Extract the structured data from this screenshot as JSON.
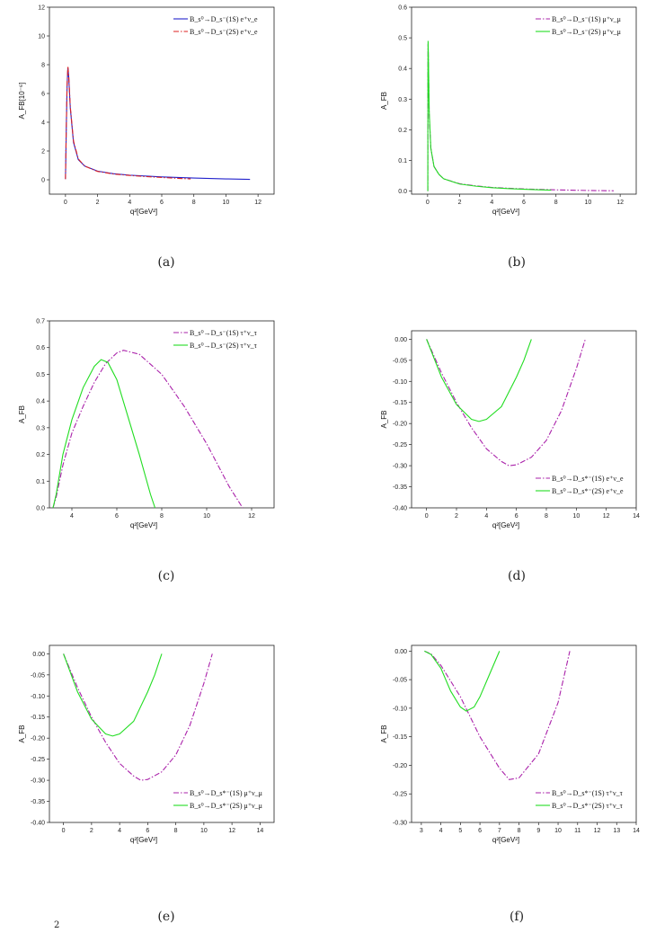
{
  "footnote": "2",
  "chart_data": [
    {
      "id": "a",
      "caption": "(a)",
      "type": "line",
      "xlabel": "q²[GeV²]",
      "ylabel": "A_FB[10⁻⁶]",
      "xlim": [
        -1,
        13
      ],
      "ylim": [
        -1,
        12
      ],
      "xticks": [
        0,
        2,
        4,
        6,
        8,
        10,
        12
      ],
      "xtick_labels": [
        "0",
        "2",
        "4",
        "6",
        "8",
        "10",
        "12"
      ],
      "yticks": [
        0,
        2,
        4,
        6,
        8,
        10,
        12
      ],
      "ytick_labels": [
        "0",
        "2",
        "4",
        "6",
        "8",
        "10",
        "12"
      ],
      "legend_position": "top-right",
      "series": [
        {
          "name": "B_s⁰→D_s⁻(1S) e⁺ν_e",
          "color": "#2222cc",
          "dash": "solid",
          "points": [
            [
              0.0,
              0.05
            ],
            [
              0.05,
              3.5
            ],
            [
              0.1,
              6.5
            ],
            [
              0.15,
              7.8
            ],
            [
              0.2,
              7.2
            ],
            [
              0.3,
              5.0
            ],
            [
              0.5,
              2.6
            ],
            [
              0.8,
              1.4
            ],
            [
              1.2,
              0.95
            ],
            [
              2,
              0.6
            ],
            [
              3,
              0.42
            ],
            [
              4,
              0.32
            ],
            [
              6,
              0.2
            ],
            [
              8,
              0.12
            ],
            [
              10,
              0.06
            ],
            [
              11.5,
              0.03
            ]
          ]
        },
        {
          "name": "B_s⁰→D_s⁻(2S) e⁺ν_e",
          "color": "#dd2222",
          "dash": "dashdot",
          "points": [
            [
              0.0,
              0.05
            ],
            [
              0.05,
              3.6
            ],
            [
              0.1,
              6.6
            ],
            [
              0.15,
              7.9
            ],
            [
              0.2,
              7.3
            ],
            [
              0.3,
              5.1
            ],
            [
              0.5,
              2.7
            ],
            [
              0.8,
              1.45
            ],
            [
              1.2,
              0.95
            ],
            [
              2,
              0.58
            ],
            [
              3,
              0.4
            ],
            [
              4,
              0.3
            ],
            [
              5,
              0.22
            ],
            [
              6,
              0.16
            ],
            [
              7,
              0.1
            ],
            [
              7.8,
              0.06
            ]
          ]
        }
      ]
    },
    {
      "id": "b",
      "caption": "(b)",
      "type": "line",
      "xlabel": "q²[GeV²]",
      "ylabel": "A_FB",
      "xlim": [
        -1,
        13
      ],
      "ylim": [
        -0.01,
        0.6
      ],
      "xticks": [
        0,
        2,
        4,
        6,
        8,
        10,
        12
      ],
      "xtick_labels": [
        "0",
        "2",
        "4",
        "6",
        "8",
        "10",
        "12"
      ],
      "yticks": [
        0.0,
        0.1,
        0.2,
        0.3,
        0.4,
        0.5,
        0.6
      ],
      "ytick_labels": [
        "0.0",
        "0.1",
        "0.2",
        "0.3",
        "0.4",
        "0.5",
        "0.6"
      ],
      "legend_position": "top-right",
      "series": [
        {
          "name": "B_s⁰→D_s⁻(1S) μ⁺ν_μ",
          "color": "#aa22aa",
          "dash": "dashdot",
          "points": [
            [
              0.0112,
              0.0
            ],
            [
              0.015,
              0.15
            ],
            [
              0.02,
              0.35
            ],
            [
              0.03,
              0.48
            ],
            [
              0.05,
              0.42
            ],
            [
              0.1,
              0.25
            ],
            [
              0.2,
              0.14
            ],
            [
              0.4,
              0.08
            ],
            [
              0.7,
              0.055
            ],
            [
              1,
              0.04
            ],
            [
              2,
              0.024
            ],
            [
              3,
              0.017
            ],
            [
              4,
              0.012
            ],
            [
              6,
              0.007
            ],
            [
              8,
              0.004
            ],
            [
              10,
              0.002
            ],
            [
              11.6,
              0.001
            ]
          ]
        },
        {
          "name": "B_s⁰→D_s⁻(2S) μ⁺ν_μ",
          "color": "#22dd22",
          "dash": "solid",
          "points": [
            [
              0.0112,
              0.0
            ],
            [
              0.015,
              0.16
            ],
            [
              0.02,
              0.36
            ],
            [
              0.03,
              0.49
            ],
            [
              0.05,
              0.43
            ],
            [
              0.1,
              0.26
            ],
            [
              0.2,
              0.14
            ],
            [
              0.4,
              0.08
            ],
            [
              0.7,
              0.055
            ],
            [
              1,
              0.04
            ],
            [
              2,
              0.023
            ],
            [
              3,
              0.016
            ],
            [
              4,
              0.011
            ],
            [
              5,
              0.008
            ],
            [
              6,
              0.006
            ],
            [
              7,
              0.004
            ],
            [
              7.7,
              0.003
            ]
          ]
        }
      ]
    },
    {
      "id": "c",
      "caption": "(c)",
      "type": "line",
      "xlabel": "q²[GeV²]",
      "ylabel": "A_FB",
      "xlim": [
        3,
        13
      ],
      "ylim": [
        0,
        0.7
      ],
      "xticks": [
        4,
        6,
        8,
        10,
        12
      ],
      "xtick_labels": [
        "4",
        "6",
        "8",
        "10",
        "12"
      ],
      "yticks": [
        0.0,
        0.1,
        0.2,
        0.3,
        0.4,
        0.5,
        0.6,
        0.7
      ],
      "ytick_labels": [
        "0.0",
        "0.1",
        "0.2",
        "0.3",
        "0.4",
        "0.5",
        "0.6",
        "0.7"
      ],
      "legend_position": "top-right",
      "series": [
        {
          "name": "B_s⁰→D_s⁻(1S) τ⁺ν_τ",
          "color": "#aa22aa",
          "dash": "dashdot",
          "points": [
            [
              3.16,
              0.0
            ],
            [
              3.3,
              0.04
            ],
            [
              3.6,
              0.16
            ],
            [
              4,
              0.28
            ],
            [
              4.5,
              0.38
            ],
            [
              5,
              0.47
            ],
            [
              5.5,
              0.54
            ],
            [
              6,
              0.58
            ],
            [
              6.3,
              0.59
            ],
            [
              7,
              0.575
            ],
            [
              8,
              0.5
            ],
            [
              9,
              0.38
            ],
            [
              10,
              0.24
            ],
            [
              11,
              0.08
            ],
            [
              11.6,
              0.0
            ]
          ]
        },
        {
          "name": "B_s⁰→D_s⁻(2S) τ⁺ν_τ",
          "color": "#22dd22",
          "dash": "solid",
          "points": [
            [
              3.16,
              0.0
            ],
            [
              3.3,
              0.05
            ],
            [
              3.6,
              0.2
            ],
            [
              4,
              0.33
            ],
            [
              4.5,
              0.45
            ],
            [
              5,
              0.53
            ],
            [
              5.3,
              0.555
            ],
            [
              5.6,
              0.545
            ],
            [
              6,
              0.48
            ],
            [
              6.5,
              0.34
            ],
            [
              7,
              0.2
            ],
            [
              7.5,
              0.05
            ],
            [
              7.7,
              0.0
            ]
          ]
        }
      ]
    },
    {
      "id": "d",
      "caption": "(d)",
      "type": "line",
      "xlabel": "q²[GeV²]",
      "ylabel": "A_FB",
      "xlim": [
        -1,
        14
      ],
      "ylim": [
        -0.4,
        0.02
      ],
      "xticks": [
        0,
        2,
        4,
        6,
        8,
        10,
        12,
        14
      ],
      "xtick_labels": [
        "0",
        "2",
        "4",
        "6",
        "8",
        "10",
        "12",
        "14"
      ],
      "yticks": [
        0.0,
        -0.05,
        -0.1,
        -0.15,
        -0.2,
        -0.25,
        -0.3,
        -0.35,
        -0.4
      ],
      "ytick_labels": [
        "0.00",
        "-0.05",
        "-0.10",
        "-0.15",
        "-0.20",
        "-0.25",
        "-0.30",
        "-0.35",
        "-0.40"
      ],
      "legend_position": "bottom-right",
      "series": [
        {
          "name": "B_s⁰→D_s*⁻(1S) e⁺ν_e",
          "color": "#aa22aa",
          "dash": "dashdot",
          "points": [
            [
              0,
              0.0
            ],
            [
              1,
              -0.08
            ],
            [
              2,
              -0.15
            ],
            [
              3,
              -0.21
            ],
            [
              4,
              -0.26
            ],
            [
              5,
              -0.29
            ],
            [
              5.5,
              -0.3
            ],
            [
              6,
              -0.298
            ],
            [
              7,
              -0.28
            ],
            [
              8,
              -0.24
            ],
            [
              9,
              -0.17
            ],
            [
              10,
              -0.07
            ],
            [
              10.6,
              0.0
            ]
          ]
        },
        {
          "name": "B_s⁰→D_s*⁻(2S) e⁺ν_e",
          "color": "#22dd22",
          "dash": "solid",
          "points": [
            [
              0,
              0.0
            ],
            [
              1,
              -0.09
            ],
            [
              2,
              -0.155
            ],
            [
              3,
              -0.19
            ],
            [
              3.5,
              -0.195
            ],
            [
              4,
              -0.19
            ],
            [
              5,
              -0.16
            ],
            [
              6,
              -0.09
            ],
            [
              6.5,
              -0.05
            ],
            [
              7,
              0.0
            ]
          ]
        }
      ]
    },
    {
      "id": "e",
      "caption": "(e)",
      "type": "line",
      "xlabel": "q²[GeV²]",
      "ylabel": "A_FB",
      "xlim": [
        -1,
        15
      ],
      "ylim": [
        -0.4,
        0.02
      ],
      "xticks": [
        0,
        2,
        4,
        6,
        8,
        10,
        12,
        14
      ],
      "xtick_labels": [
        "0",
        "2",
        "4",
        "6",
        "8",
        "10",
        "12",
        "14"
      ],
      "yticks": [
        0.0,
        -0.05,
        -0.1,
        -0.15,
        -0.2,
        -0.25,
        -0.3,
        -0.35,
        -0.4
      ],
      "ytick_labels": [
        "0.00",
        "-0.05",
        "-0.10",
        "-0.15",
        "-0.20",
        "-0.25",
        "-0.30",
        "-0.35",
        "-0.40"
      ],
      "legend_position": "bottom-right",
      "series": [
        {
          "name": "B_s⁰→D_s*⁻(1S) μ⁺ν_μ",
          "color": "#aa22aa",
          "dash": "dashdot",
          "points": [
            [
              0,
              0.0
            ],
            [
              1,
              -0.08
            ],
            [
              2,
              -0.15
            ],
            [
              3,
              -0.21
            ],
            [
              4,
              -0.26
            ],
            [
              5,
              -0.29
            ],
            [
              5.5,
              -0.3
            ],
            [
              6,
              -0.298
            ],
            [
              7,
              -0.28
            ],
            [
              8,
              -0.24
            ],
            [
              9,
              -0.17
            ],
            [
              10,
              -0.07
            ],
            [
              10.6,
              0.0
            ]
          ]
        },
        {
          "name": "B_s⁰→D_s*⁻(2S) μ⁺ν_μ",
          "color": "#22dd22",
          "dash": "solid",
          "points": [
            [
              0,
              0.0
            ],
            [
              1,
              -0.09
            ],
            [
              2,
              -0.155
            ],
            [
              3,
              -0.19
            ],
            [
              3.5,
              -0.195
            ],
            [
              4,
              -0.19
            ],
            [
              5,
              -0.16
            ],
            [
              6,
              -0.09
            ],
            [
              6.5,
              -0.05
            ],
            [
              7,
              0.0
            ]
          ]
        }
      ]
    },
    {
      "id": "f",
      "caption": "(f)",
      "type": "line",
      "xlabel": "q²[GeV²]",
      "ylabel": "A_FB",
      "xlim": [
        2.5,
        14
      ],
      "ylim": [
        -0.3,
        0.01
      ],
      "xticks": [
        3,
        4,
        5,
        6,
        7,
        8,
        9,
        10,
        11,
        12,
        13,
        14
      ],
      "xtick_labels": [
        "3",
        "4",
        "5",
        "6",
        "7",
        "8",
        "9",
        "10",
        "11",
        "12",
        "13",
        "14"
      ],
      "yticks": [
        0.0,
        -0.05,
        -0.1,
        -0.15,
        -0.2,
        -0.25,
        -0.3
      ],
      "ytick_labels": [
        "0.00",
        "-0.05",
        "-0.10",
        "-0.15",
        "-0.20",
        "-0.25",
        "-0.30"
      ],
      "legend_position": "bottom-right",
      "series": [
        {
          "name": "B_s⁰→D_s*⁻(1S) τ⁺ν_τ",
          "color": "#aa22aa",
          "dash": "dashdot",
          "points": [
            [
              3.16,
              0.0
            ],
            [
              3.5,
              -0.005
            ],
            [
              4,
              -0.025
            ],
            [
              5,
              -0.08
            ],
            [
              6,
              -0.15
            ],
            [
              7,
              -0.205
            ],
            [
              7.5,
              -0.225
            ],
            [
              8,
              -0.222
            ],
            [
              9,
              -0.18
            ],
            [
              10,
              -0.09
            ],
            [
              10.6,
              0.0
            ]
          ]
        },
        {
          "name": "B_s⁰→D_s*⁻(2S) τ⁺ν_τ",
          "color": "#22dd22",
          "dash": "solid",
          "points": [
            [
              3.16,
              0.0
            ],
            [
              3.5,
              -0.006
            ],
            [
              4,
              -0.03
            ],
            [
              4.5,
              -0.07
            ],
            [
              5,
              -0.098
            ],
            [
              5.3,
              -0.105
            ],
            [
              5.7,
              -0.098
            ],
            [
              6,
              -0.08
            ],
            [
              6.5,
              -0.04
            ],
            [
              7,
              0.0
            ]
          ]
        }
      ]
    }
  ]
}
